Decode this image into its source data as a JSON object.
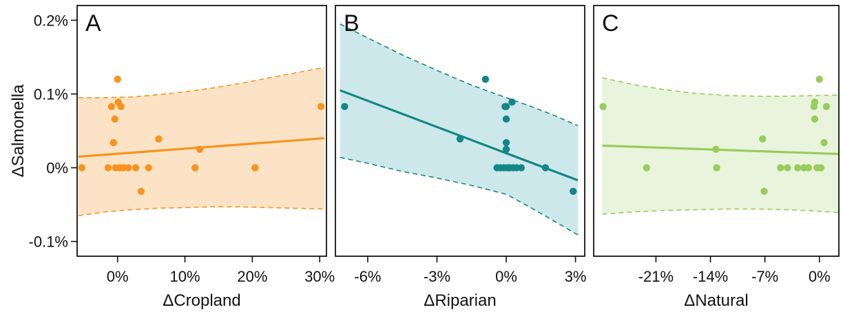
{
  "chart_data": [
    {
      "panel": "A",
      "type": "scatter",
      "xlabel": "ΔCropland",
      "ylabel": "ΔSalmonella",
      "color": "#F7931E",
      "band_color": "#FDE3C6",
      "xlim": [
        -6,
        31
      ],
      "ylim": [
        -0.12,
        0.22
      ],
      "xticks": [
        {
          "v": 0,
          "label": "0%"
        },
        {
          "v": 10,
          "label": "10%"
        },
        {
          "v": 20,
          "label": "20%"
        },
        {
          "v": 30,
          "label": "30%"
        }
      ],
      "yticks": [
        {
          "v": -0.1,
          "label": "-0.1%"
        },
        {
          "v": 0,
          "label": "0%"
        },
        {
          "v": 0.1,
          "label": "0.1%"
        },
        {
          "v": 0.2,
          "label": "0.2%"
        }
      ],
      "points": [
        {
          "x": -5.3,
          "y": 0.0
        },
        {
          "x": -1.4,
          "y": 0.0
        },
        {
          "x": -0.9,
          "y": 0.083
        },
        {
          "x": -0.6,
          "y": 0.034
        },
        {
          "x": -0.4,
          "y": 0.066
        },
        {
          "x": -0.3,
          "y": 0.0
        },
        {
          "x": 0.0,
          "y": 0.12
        },
        {
          "x": 0.1,
          "y": 0.089
        },
        {
          "x": 0.3,
          "y": 0.0
        },
        {
          "x": 0.5,
          "y": 0.083
        },
        {
          "x": 0.9,
          "y": 0.0
        },
        {
          "x": 1.6,
          "y": 0.0
        },
        {
          "x": 2.7,
          "y": 0.0
        },
        {
          "x": 3.5,
          "y": -0.032
        },
        {
          "x": 4.6,
          "y": 0.0
        },
        {
          "x": 6.1,
          "y": 0.039
        },
        {
          "x": 11.5,
          "y": 0.0
        },
        {
          "x": 12.2,
          "y": 0.025
        },
        {
          "x": 20.4,
          "y": 0.0
        },
        {
          "x": 30.2,
          "y": 0.083
        }
      ],
      "fit": {
        "x": [
          -5.8,
          30.7
        ],
        "y": [
          0.015,
          0.04
        ]
      },
      "band_x": [
        -5.8,
        -2,
        2,
        6,
        10,
        14,
        18,
        22,
        26,
        30.7
      ],
      "band_upper": [
        0.095,
        0.095,
        0.096,
        0.099,
        0.103,
        0.108,
        0.114,
        0.121,
        0.128,
        0.136
      ],
      "band_lower": [
        -0.065,
        -0.06,
        -0.057,
        -0.055,
        -0.054,
        -0.053,
        -0.053,
        -0.054,
        -0.055,
        -0.056
      ]
    },
    {
      "panel": "B",
      "type": "scatter",
      "xlabel": "ΔRiparian",
      "ylabel": "",
      "color": "#138686",
      "band_color": "#CDE8EA",
      "xlim": [
        -7.4,
        3.4
      ],
      "ylim": [
        -0.12,
        0.22
      ],
      "xticks": [
        {
          "v": -6,
          "label": "-6%"
        },
        {
          "v": -3,
          "label": "-3%"
        },
        {
          "v": 0,
          "label": "0%"
        },
        {
          "v": 3,
          "label": "3%"
        }
      ],
      "yticks": [],
      "points": [
        {
          "x": -7.0,
          "y": 0.083
        },
        {
          "x": -2.0,
          "y": 0.039
        },
        {
          "x": -0.9,
          "y": 0.12
        },
        {
          "x": -0.4,
          "y": 0.0
        },
        {
          "x": -0.25,
          "y": 0.0
        },
        {
          "x": -0.1,
          "y": 0.0
        },
        {
          "x": -0.05,
          "y": 0.083
        },
        {
          "x": 0.0,
          "y": 0.083
        },
        {
          "x": 0.0,
          "y": 0.066
        },
        {
          "x": 0.0,
          "y": 0.034
        },
        {
          "x": 0.0,
          "y": 0.025
        },
        {
          "x": 0.05,
          "y": 0.0
        },
        {
          "x": 0.15,
          "y": 0.0
        },
        {
          "x": 0.25,
          "y": 0.089
        },
        {
          "x": 0.3,
          "y": 0.0
        },
        {
          "x": 0.45,
          "y": 0.0
        },
        {
          "x": 0.65,
          "y": 0.0
        },
        {
          "x": 1.7,
          "y": 0.0
        },
        {
          "x": 2.9,
          "y": -0.032
        }
      ],
      "fit": {
        "x": [
          -7.2,
          3.1
        ],
        "y": [
          0.105,
          -0.017
        ]
      },
      "band_x": [
        -7.2,
        -6,
        -4.5,
        -3,
        -1.5,
        0,
        1,
        2,
        3.1
      ],
      "band_upper": [
        0.195,
        0.176,
        0.153,
        0.132,
        0.112,
        0.095,
        0.084,
        0.072,
        0.057
      ],
      "band_lower": [
        0.014,
        0.006,
        -0.005,
        -0.014,
        -0.024,
        -0.036,
        -0.053,
        -0.071,
        -0.091
      ]
    },
    {
      "panel": "C",
      "type": "scatter",
      "xlabel": "ΔNatural",
      "ylabel": "",
      "color": "#98CC5C",
      "band_color": "#E9F4DD",
      "xlim": [
        -29,
        2.5
      ],
      "ylim": [
        -0.12,
        0.22
      ],
      "xticks": [
        {
          "v": -21,
          "label": "-21%"
        },
        {
          "v": -14,
          "label": "-14%"
        },
        {
          "v": -7,
          "label": "-7%"
        },
        {
          "v": 0,
          "label": "0%"
        }
      ],
      "yticks": [],
      "points": [
        {
          "x": -27.8,
          "y": 0.083
        },
        {
          "x": -22.2,
          "y": 0.0
        },
        {
          "x": -13.3,
          "y": 0.025
        },
        {
          "x": -13.2,
          "y": 0.0
        },
        {
          "x": -7.3,
          "y": 0.039
        },
        {
          "x": -7.1,
          "y": -0.032
        },
        {
          "x": -5.0,
          "y": 0.0
        },
        {
          "x": -4.1,
          "y": 0.0
        },
        {
          "x": -2.8,
          "y": 0.0
        },
        {
          "x": -2.0,
          "y": 0.0
        },
        {
          "x": -1.4,
          "y": 0.0
        },
        {
          "x": -0.7,
          "y": 0.083
        },
        {
          "x": -0.6,
          "y": 0.089
        },
        {
          "x": -0.6,
          "y": 0.066
        },
        {
          "x": -0.3,
          "y": 0.0
        },
        {
          "x": 0.0,
          "y": 0.12
        },
        {
          "x": 0.2,
          "y": 0.0
        },
        {
          "x": 0.6,
          "y": 0.034
        },
        {
          "x": 0.9,
          "y": 0.083
        },
        {
          "x": 4.0,
          "y": 0.0
        }
      ],
      "fit": {
        "x": [
          -27.9,
          4.1
        ],
        "y": [
          0.03,
          0.018
        ]
      },
      "band_x": [
        -27.9,
        -24,
        -20,
        -16,
        -12,
        -8,
        -4,
        0,
        4.1
      ],
      "band_upper": [
        0.122,
        0.113,
        0.106,
        0.101,
        0.098,
        0.097,
        0.097,
        0.098,
        0.099
      ],
      "band_lower": [
        -0.063,
        -0.06,
        -0.058,
        -0.057,
        -0.056,
        -0.056,
        -0.057,
        -0.059,
        -0.062
      ]
    }
  ],
  "panel_letters": [
    "A",
    "B",
    "C"
  ],
  "y_axis_title": "ΔSalmonella",
  "x_axis_titles": [
    "ΔCropland",
    "ΔRiparian",
    "ΔNatural"
  ]
}
